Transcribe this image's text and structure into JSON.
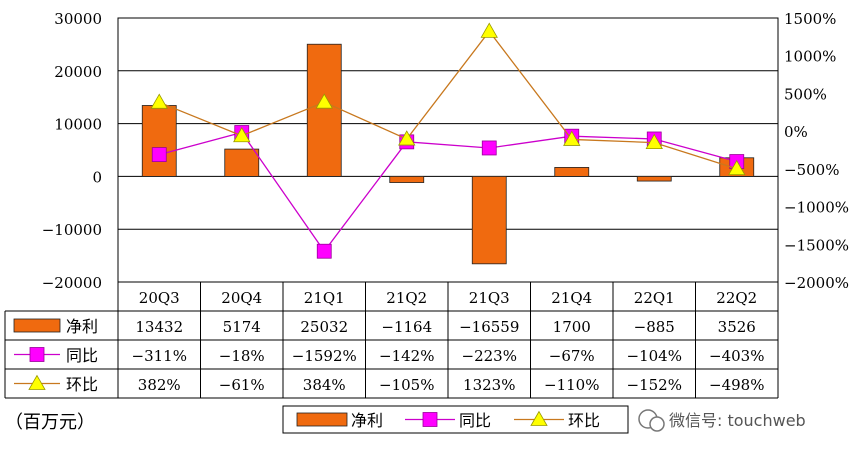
{
  "chart_data": {
    "type": "bar",
    "categories": [
      "20Q3",
      "20Q4",
      "21Q1",
      "21Q2",
      "21Q3",
      "21Q4",
      "22Q1",
      "22Q2"
    ],
    "series": [
      {
        "name": "净利",
        "kind": "bar",
        "axis": "left",
        "color": "#F06A0F",
        "values": [
          13432,
          5174,
          25032,
          -1164,
          -16559,
          1700,
          -885,
          3526
        ],
        "labels": [
          "13432",
          "5174",
          "25032",
          "−1164",
          "−16559",
          "1700",
          "−885",
          "3526"
        ]
      },
      {
        "name": "同比",
        "kind": "line",
        "axis": "right",
        "color": "#CC00CC",
        "values": [
          -311,
          -18,
          -1592,
          -142,
          -223,
          -67,
          -104,
          -403
        ],
        "labels": [
          "−311%",
          "−18%",
          "−1592%",
          "−142%",
          "−223%",
          "−67%",
          "−104%",
          "−403%"
        ]
      },
      {
        "name": "环比",
        "kind": "line",
        "axis": "right",
        "color": "#C8781E",
        "values": [
          382,
          -61,
          384,
          -105,
          1323,
          -110,
          -152,
          -498
        ],
        "labels": [
          "382%",
          "−61%",
          "384%",
          "−105%",
          "1323%",
          "−110%",
          "−152%",
          "−498%"
        ]
      }
    ],
    "y_left": {
      "min": -20000,
      "max": 30000,
      "step": 10000,
      "ticks": [
        "30000",
        "20000",
        "10000",
        "0",
        "−10000",
        "−20000"
      ]
    },
    "y_right": {
      "min": -2000,
      "max": 1500,
      "step": 500,
      "ticks": [
        "1500%",
        "1000%",
        "500%",
        "0%",
        "−500%",
        "−1000%",
        "−1500%",
        "−2000%"
      ]
    },
    "grid": true,
    "legend_position": "bottom",
    "data_table": true
  },
  "unit_note": "（百万元）",
  "watermark": "微信号: touchweb"
}
